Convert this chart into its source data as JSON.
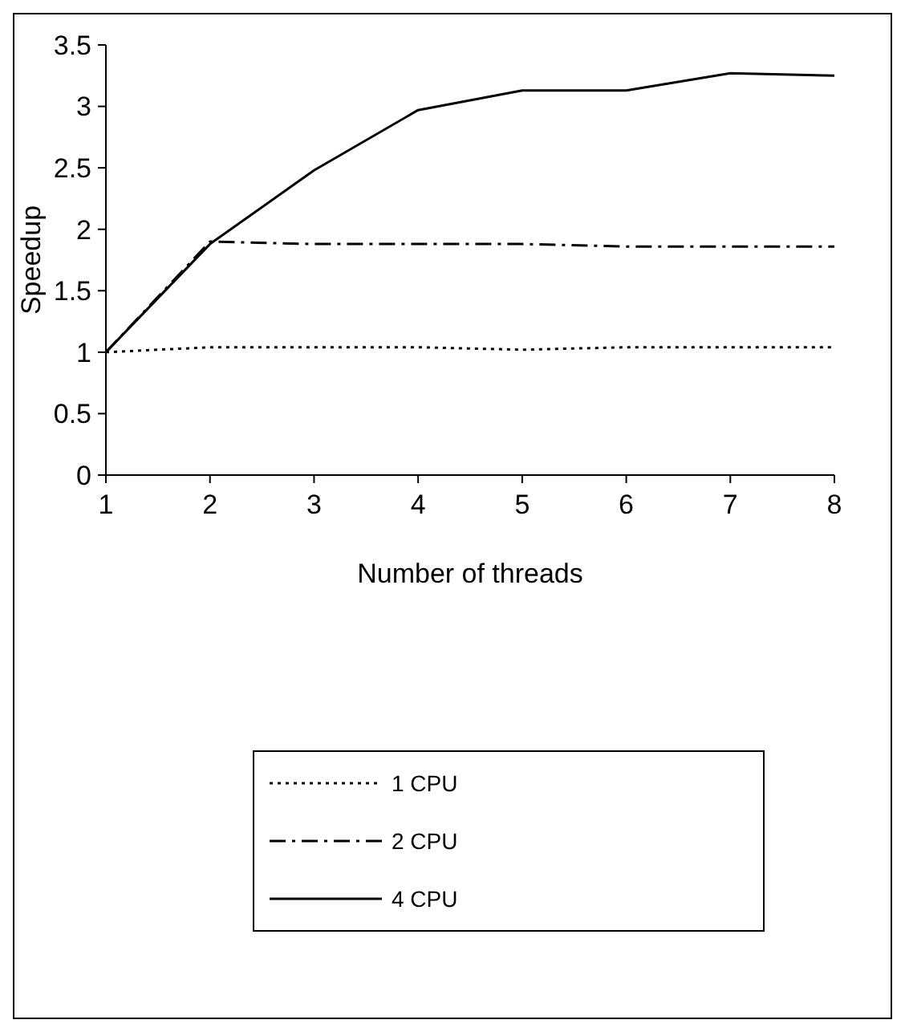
{
  "chart_data": {
    "type": "line",
    "xlabel": "Number of threads",
    "ylabel": "Speedup",
    "x": [
      1,
      2,
      3,
      4,
      5,
      6,
      7,
      8
    ],
    "xlim": [
      1,
      8
    ],
    "xticks": [
      1,
      2,
      3,
      4,
      5,
      6,
      7,
      8
    ],
    "ylim": [
      0,
      3.5
    ],
    "yticks": [
      0,
      0.5,
      1,
      1.5,
      2,
      2.5,
      3,
      3.5
    ],
    "grid": false,
    "legend": "bottom",
    "series": [
      {
        "name": "1 CPU",
        "color": "#000000",
        "line_style": "dotted",
        "values": [
          1,
          1.04,
          1.04,
          1.04,
          1.02,
          1.04,
          1.04,
          1.04
        ]
      },
      {
        "name": "2 CPU",
        "color": "#000000",
        "line_style": "dashdot",
        "values": [
          1,
          1.9,
          1.88,
          1.88,
          1.88,
          1.86,
          1.86,
          1.86
        ]
      },
      {
        "name": "4 CPU",
        "color": "#000000",
        "line_style": "solid",
        "values": [
          1,
          1.88,
          2.48,
          2.97,
          3.13,
          3.13,
          3.27,
          3.25
        ]
      }
    ]
  }
}
